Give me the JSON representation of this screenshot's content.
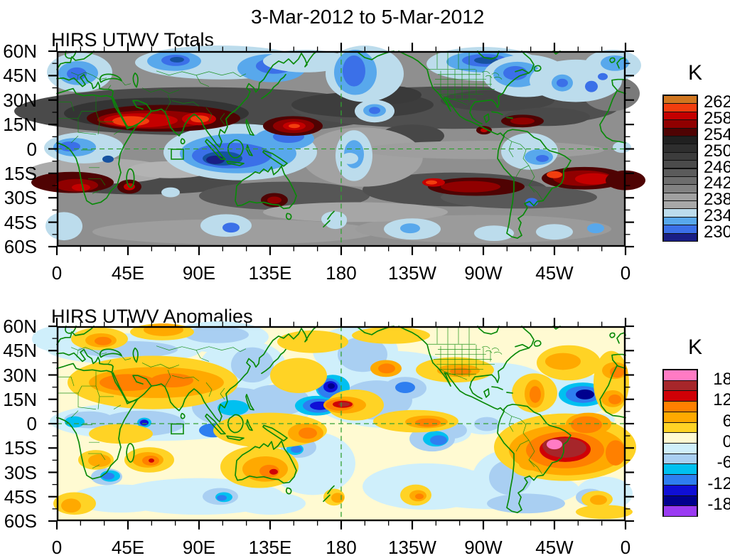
{
  "page": {
    "title": "3-Mar-2012 to 5-Mar-2012"
  },
  "panels": [
    {
      "title": "HIRS UTWV Totals",
      "y_tick_labels": [
        "60N",
        "45N",
        "30N",
        "15N",
        "0",
        "15S",
        "30S",
        "45S",
        "60S"
      ],
      "x_tick_labels": [
        "0",
        "45E",
        "90E",
        "135E",
        "180",
        "135W",
        "90W",
        "45W",
        "0"
      ],
      "colorbar": {
        "title": "K",
        "tick_labels": [
          "262",
          "258",
          "254",
          "250",
          "246",
          "242",
          "238",
          "234",
          "230"
        ],
        "segment_colors_top_to_bottom": [
          "#D1761F",
          "#F23D0E",
          "#C40000",
          "#900000",
          "#4F0303",
          "#202020",
          "#2E2E2E",
          "#3C3C3C",
          "#4B4B4B",
          "#5B5B5B",
          "#6D6D6D",
          "#828282",
          "#A0A0A0",
          "#A8A8A8",
          "#BCDCEC",
          "#58A8EC",
          "#3B70E8",
          "#191E85"
        ]
      }
    },
    {
      "title": "HIRS UTWV Anomalies",
      "y_tick_labels": [
        "60N",
        "45N",
        "30N",
        "15N",
        "0",
        "15S",
        "30S",
        "45S",
        "60S"
      ],
      "x_tick_labels": [
        "0",
        "45E",
        "90E",
        "135E",
        "180",
        "135W",
        "90W",
        "45W",
        "0"
      ],
      "colorbar": {
        "title": "K",
        "tick_labels": [
          "18",
          "12",
          "6",
          "0",
          "-6",
          "-12",
          "-18"
        ],
        "segment_colors_top_to_bottom": [
          "#FF7BC4",
          "#A6262A",
          "#CF0006",
          "#FF8000",
          "#FFA900",
          "#FFD325",
          "#FFFAD2",
          "#CFEFFB",
          "#A9CFF2",
          "#00C0F0",
          "#2E7EF0",
          "#0F0FD6",
          "#00008E",
          "#9A3BF2"
        ]
      }
    }
  ],
  "chart_data": [
    {
      "type": "heatmap",
      "subtype": "filled_contour_world_map",
      "title": "HIRS UTWV Totals",
      "date_range": "3-Mar-2012 to 5-Mar-2012",
      "units": "K",
      "projection": "cylindrical equidistant, 60N-60S, longitude 0E eastward to 0E",
      "x_ticks": [
        "0",
        "45E",
        "90E",
        "135E",
        "180",
        "135W",
        "90W",
        "45W",
        "0"
      ],
      "y_ticks": [
        "60N",
        "45N",
        "30N",
        "15N",
        "0",
        "15S",
        "30S",
        "45S",
        "60S"
      ],
      "contour_interval_k": 2,
      "colorbar_tick_values_k": [
        262,
        258,
        254,
        250,
        246,
        242,
        238,
        234,
        230
      ],
      "palette_high_to_low": [
        "#D1761F",
        "#F23D0E",
        "#C40000",
        "#900000",
        "#4F0303",
        "#202020",
        "#2E2E2E",
        "#3C3C3C",
        "#4B4B4B",
        "#5B5B5B",
        "#6D6D6D",
        "#828282",
        "#A0A0A0",
        "#A8A8A8",
        "#BCDCEC",
        "#58A8EC",
        "#3B70E8",
        "#191E85"
      ],
      "legend_position": "right",
      "notable_features": [
        "Warm maximum band 254-264 K (dark red) across North Africa, Arabia and northern India near 10-25N",
        "Bright red maximum east of the Philippines near 15N 145E",
        "Warm band 252-262 K across the southern subtropics: South Atlantic/South Africa, south Indian Ocean, central Australia, and South Pacific through southern Brazil to the Atlantic near 15-30S",
        "Cold minimum 228-236 K (navy/blue) over Indonesia and the Maritime Continent near the equator",
        "Cold pools (blue) over northern Europe, Siberia, northern Canada, Gulf of Alaska, eastern North America and the east Pacific off Ecuador/Peru",
        "Mid-range 238-252 K grays over most mid-latitude oceans",
        "Dashed green reference lines at the equator and the 180 meridian; small green study box near 75E on the equator"
      ]
    },
    {
      "type": "heatmap",
      "subtype": "filled_contour_world_map",
      "title": "HIRS UTWV Anomalies",
      "date_range": "3-Mar-2012 to 5-Mar-2012",
      "units": "K",
      "projection": "cylindrical equidistant, 60N-60S, longitude 0E eastward to 0E",
      "x_ticks": [
        "0",
        "45E",
        "90E",
        "135E",
        "180",
        "135W",
        "90W",
        "45W",
        "0"
      ],
      "y_ticks": [
        "60N",
        "45N",
        "30N",
        "15N",
        "0",
        "15S",
        "30S",
        "45S",
        "60S"
      ],
      "contour_interval_k": 3,
      "colorbar_tick_values_k": [
        18,
        12,
        6,
        0,
        -6,
        -12,
        -18
      ],
      "palette_high_to_low": [
        "#FF7BC4",
        "#A6262A",
        "#CF0006",
        "#FF8000",
        "#FFA900",
        "#FFD325",
        "#FFFAD2",
        "#CFEFFB",
        "#A9CFF2",
        "#00C0F0",
        "#2E7EF0",
        "#0F0FD6",
        "#00008E",
        "#9A3BF2"
      ],
      "legend_position": "right",
      "notable_features": [
        "Strong positive anomaly with +18 to +21 K pink core over southeastern Brazil and adjacent South Atlantic, surrounded by +9 to +15 K orange/red",
        "Positive +6 to +12 K band across the Sahara, Arabia and northern India",
        "Positive anomalies over central-south Australia, the Madagascar region, South Africa and the Coral Sea",
        "Strong negative anomaly below -12 K (navy) over the Philippine Sea near 5-10N 130E",
        "Deep negative anomaly (navy) over the central North Pacific near 35N 175E and over the subtropical North Atlantic near 25N 55W",
        "Red +12 to +15 K streak just west of the dateline near 10N",
        "Weak anomalies between -3 and +3 K (cream / very pale blue) over most other regions",
        "Dashed green reference lines at the equator and the 180 meridian; small green study box near 75E on the equator"
      ]
    }
  ]
}
